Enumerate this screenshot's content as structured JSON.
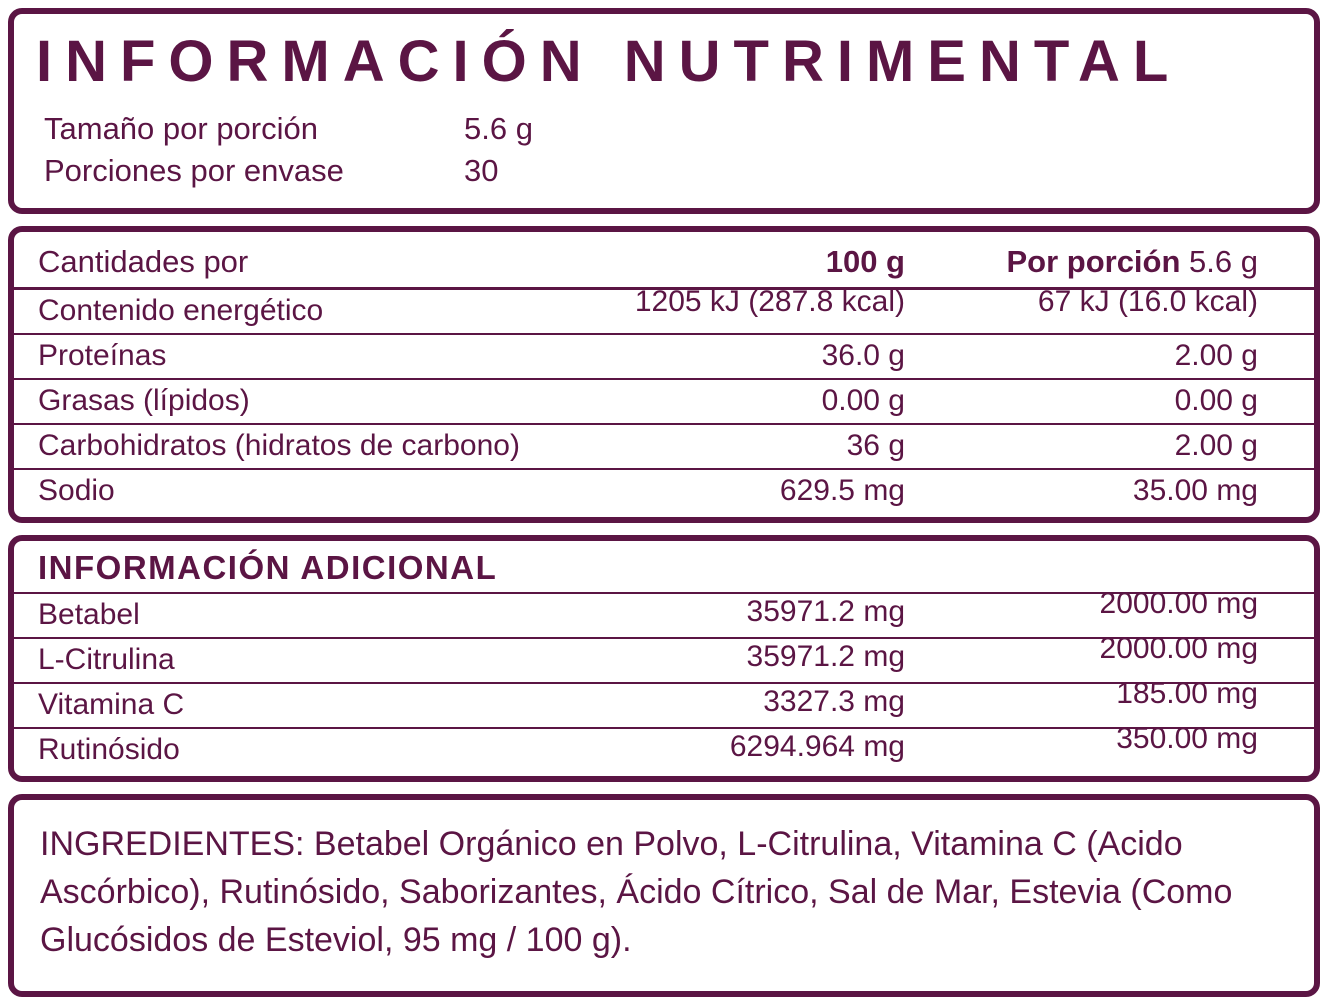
{
  "colors": {
    "ink": "#5b1544",
    "background": "#ffffff"
  },
  "header": {
    "title": "INFORMACIÓN NUTRIMENTAL",
    "serving_size_label": "Tamaño por porción",
    "serving_size_value": "5.6 g",
    "servings_label": "Porciones por envase",
    "servings_value": "30"
  },
  "table": {
    "header": {
      "amounts_label": "Cantidades por",
      "per_100": "100 g",
      "per_portion_label": "Por porción",
      "per_portion_value": "5.6 g"
    },
    "rows": [
      {
        "label": "Contenido energético",
        "per100": "1205 kJ (287.8 kcal)",
        "portion": "67 kJ (16.0 kcal)"
      },
      {
        "label": "Proteínas",
        "per100": "36.0 g",
        "portion": "2.00 g"
      },
      {
        "label": "Grasas (lípidos)",
        "per100": "0.00 g",
        "portion": "0.00 g"
      },
      {
        "label": "Carbohidratos (hidratos de carbono)",
        "per100": "36 g",
        "portion": "2.00 g"
      },
      {
        "label": "Sodio",
        "per100": "629.5 mg",
        "portion": "35.00 mg"
      }
    ]
  },
  "additional": {
    "title": "INFORMACIÓN ADICIONAL",
    "rows": [
      {
        "label": "Betabel",
        "per100": "35971.2 mg",
        "portion": "2000.00 mg"
      },
      {
        "label": "L-Citrulina",
        "per100": "35971.2 mg",
        "portion": "2000.00 mg"
      },
      {
        "label": "Vitamina C",
        "per100": "3327.3 mg",
        "portion": "185.00 mg"
      },
      {
        "label": "Rutinósido",
        "per100": "6294.964 mg",
        "portion": "350.00 mg"
      }
    ]
  },
  "ingredients": {
    "text": "INGREDIENTES: Betabel Orgánico en Polvo, L-Citrulina, Vitamina C (Acido Ascórbico), Rutinósido, Saborizantes, Ácido Cítrico, Sal de Mar, Estevia (Como Glucósidos de Esteviol, 95 mg / 100 g)."
  }
}
